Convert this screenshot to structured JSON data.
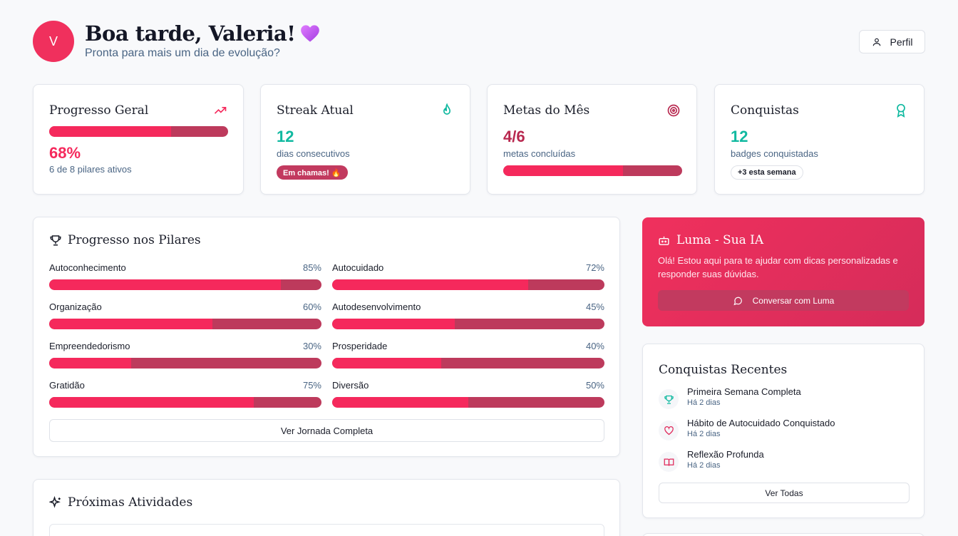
{
  "header": {
    "avatar_initial": "V",
    "greeting": "Boa tarde, Valeria!",
    "subtitle": "Pronta para mais um dia de evolução?",
    "profile_label": "Perfil"
  },
  "stats": {
    "overall": {
      "title": "Progresso Geral",
      "value": "68%",
      "caption": "6 de 8 pilares ativos",
      "progress": 0.68
    },
    "streak": {
      "title": "Streak Atual",
      "value": "12",
      "caption": "dias consecutivos",
      "badge": "Em chamas! 🔥"
    },
    "goals": {
      "title": "Metas do Mês",
      "value": "4/6",
      "caption": "metas concluídas",
      "progress": 0.67
    },
    "achievements": {
      "title": "Conquistas",
      "value": "12",
      "caption": "badges conquistadas",
      "badge": "+3 esta semana"
    }
  },
  "pillars": {
    "title": "Progresso nos Pilares",
    "items": [
      {
        "label": "Autoconhecimento",
        "pct_text": "85%",
        "value": 0.85
      },
      {
        "label": "Autocuidado",
        "pct_text": "72%",
        "value": 0.72
      },
      {
        "label": "Organização",
        "pct_text": "60%",
        "value": 0.6
      },
      {
        "label": "Autodesenvolvimento",
        "pct_text": "45%",
        "value": 0.45
      },
      {
        "label": "Empreendedorismo",
        "pct_text": "30%",
        "value": 0.3
      },
      {
        "label": "Prosperidade",
        "pct_text": "40%",
        "value": 0.4
      },
      {
        "label": "Gratidão",
        "pct_text": "75%",
        "value": 0.75
      },
      {
        "label": "Diversão",
        "pct_text": "50%",
        "value": 0.5
      }
    ],
    "button": "Ver Jornada Completa"
  },
  "activities": {
    "title": "Próximas Atividades"
  },
  "luma": {
    "title": "Luma - Sua IA",
    "text": "Olá! Estou aqui para te ajudar com dicas personalizadas e responder suas dúvidas.",
    "button": "Conversar com Luma"
  },
  "recent": {
    "title": "Conquistas Recentes",
    "items": [
      {
        "name": "Primeira Semana Completa",
        "time": "Há 2 dias",
        "icon": "trophy-icon"
      },
      {
        "name": "Hábito de Autocuidado Conquistado",
        "time": "Há 2 dias",
        "icon": "heart-icon"
      },
      {
        "name": "Reflexão Profunda",
        "time": "Há 2 dias",
        "icon": "book-icon"
      }
    ],
    "button": "Ver Todas"
  },
  "colors": {
    "primary": "#f5295c",
    "bar_track": "#bd3a5c",
    "teal": "#10b9a0",
    "maroon": "#b8284f",
    "muted_text": "#4a6584"
  }
}
